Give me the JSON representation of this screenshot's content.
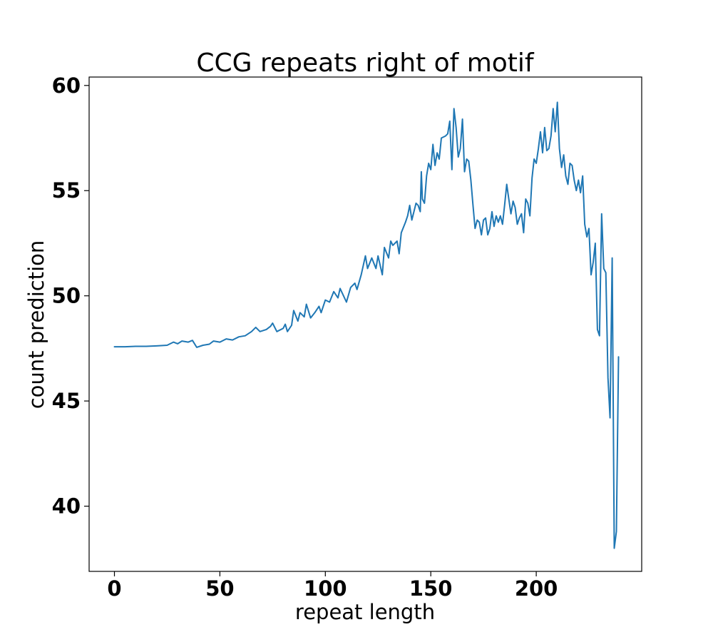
{
  "chart_data": {
    "type": "line",
    "title": "CCG repeats right of motif",
    "xlabel": "repeat length",
    "ylabel": "count prediction",
    "xlim": [
      -12,
      250
    ],
    "ylim": [
      36.9,
      60.4
    ],
    "xticks": [
      0,
      50,
      100,
      150,
      200
    ],
    "yticks": [
      40,
      45,
      50,
      55,
      60
    ],
    "xtick_labels": [
      "0",
      "50",
      "100",
      "150",
      "200"
    ],
    "ytick_labels": [
      "40",
      "45",
      "50",
      "55",
      "60"
    ],
    "grid": false,
    "legend": "none",
    "series": [
      {
        "color": "#1f77b4",
        "points": [
          [
            0,
            47.58
          ],
          [
            5,
            47.58
          ],
          [
            10,
            47.6
          ],
          [
            15,
            47.6
          ],
          [
            20,
            47.62
          ],
          [
            25,
            47.65
          ],
          [
            28,
            47.8
          ],
          [
            30,
            47.72
          ],
          [
            32,
            47.85
          ],
          [
            35,
            47.8
          ],
          [
            37,
            47.88
          ],
          [
            39,
            47.55
          ],
          [
            42,
            47.65
          ],
          [
            45,
            47.7
          ],
          [
            47,
            47.85
          ],
          [
            50,
            47.8
          ],
          [
            53,
            47.95
          ],
          [
            56,
            47.9
          ],
          [
            59,
            48.05
          ],
          [
            62,
            48.1
          ],
          [
            65,
            48.3
          ],
          [
            67,
            48.5
          ],
          [
            69,
            48.3
          ],
          [
            72,
            48.4
          ],
          [
            74,
            48.55
          ],
          [
            75,
            48.7
          ],
          [
            77,
            48.3
          ],
          [
            80,
            48.45
          ],
          [
            81,
            48.65
          ],
          [
            82,
            48.3
          ],
          [
            84,
            48.6
          ],
          [
            85,
            49.3
          ],
          [
            87,
            48.8
          ],
          [
            88,
            49.2
          ],
          [
            90,
            49.0
          ],
          [
            91,
            49.6
          ],
          [
            93,
            48.95
          ],
          [
            95,
            49.2
          ],
          [
            97,
            49.5
          ],
          [
            98,
            49.2
          ],
          [
            100,
            49.8
          ],
          [
            102,
            49.7
          ],
          [
            104,
            50.2
          ],
          [
            106,
            49.9
          ],
          [
            107,
            50.35
          ],
          [
            110,
            49.7
          ],
          [
            112,
            50.4
          ],
          [
            114,
            50.6
          ],
          [
            115,
            50.3
          ],
          [
            117,
            51.0
          ],
          [
            119,
            51.9
          ],
          [
            120,
            51.3
          ],
          [
            122,
            51.8
          ],
          [
            124,
            51.3
          ],
          [
            125,
            51.9
          ],
          [
            127,
            51.0
          ],
          [
            128,
            52.3
          ],
          [
            130,
            51.8
          ],
          [
            131,
            52.6
          ],
          [
            132,
            52.4
          ],
          [
            134,
            52.6
          ],
          [
            135,
            52.0
          ],
          [
            136,
            53.0
          ],
          [
            138,
            53.5
          ],
          [
            139,
            53.8
          ],
          [
            140,
            54.3
          ],
          [
            141,
            53.6
          ],
          [
            143,
            54.4
          ],
          [
            144,
            54.3
          ],
          [
            145,
            54.0
          ],
          [
            145.5,
            55.9
          ],
          [
            146,
            54.6
          ],
          [
            147,
            54.4
          ],
          [
            148,
            55.7
          ],
          [
            149,
            56.3
          ],
          [
            150,
            56.0
          ],
          [
            151,
            57.2
          ],
          [
            152,
            56.2
          ],
          [
            153,
            56.8
          ],
          [
            154,
            56.5
          ],
          [
            155,
            57.5
          ],
          [
            157,
            57.6
          ],
          [
            158,
            57.7
          ],
          [
            159,
            58.3
          ],
          [
            160,
            56.0
          ],
          [
            161,
            58.9
          ],
          [
            162,
            58.0
          ],
          [
            163,
            56.6
          ],
          [
            164,
            57.0
          ],
          [
            165,
            58.4
          ],
          [
            166,
            55.9
          ],
          [
            167,
            56.5
          ],
          [
            168,
            56.4
          ],
          [
            169,
            55.5
          ],
          [
            170,
            54.3
          ],
          [
            171,
            53.2
          ],
          [
            172,
            53.6
          ],
          [
            173,
            53.5
          ],
          [
            174,
            52.9
          ],
          [
            175,
            53.6
          ],
          [
            176,
            53.7
          ],
          [
            177,
            52.9
          ],
          [
            178,
            53.2
          ],
          [
            179,
            54.0
          ],
          [
            180,
            53.3
          ],
          [
            181,
            53.8
          ],
          [
            182,
            53.5
          ],
          [
            183,
            53.8
          ],
          [
            184,
            53.4
          ],
          [
            185,
            54.3
          ],
          [
            186,
            55.3
          ],
          [
            187,
            54.6
          ],
          [
            188,
            53.9
          ],
          [
            189,
            54.5
          ],
          [
            190,
            54.2
          ],
          [
            191,
            53.4
          ],
          [
            192,
            53.7
          ],
          [
            193,
            53.9
          ],
          [
            194,
            53.0
          ],
          [
            195,
            54.6
          ],
          [
            196,
            54.4
          ],
          [
            197,
            53.8
          ],
          [
            198,
            55.6
          ],
          [
            199,
            56.5
          ],
          [
            200,
            56.3
          ],
          [
            201,
            57.0
          ],
          [
            202,
            57.8
          ],
          [
            203,
            56.8
          ],
          [
            204,
            58.0
          ],
          [
            205,
            56.9
          ],
          [
            206,
            57.0
          ],
          [
            207,
            57.6
          ],
          [
            208,
            58.9
          ],
          [
            209,
            57.8
          ],
          [
            210,
            59.2
          ],
          [
            211,
            57.0
          ],
          [
            212,
            56.1
          ],
          [
            213,
            56.7
          ],
          [
            214,
            55.7
          ],
          [
            215,
            55.3
          ],
          [
            216,
            56.3
          ],
          [
            217,
            56.2
          ],
          [
            218,
            55.5
          ],
          [
            219,
            55.0
          ],
          [
            220,
            55.5
          ],
          [
            221,
            54.9
          ],
          [
            222,
            55.7
          ],
          [
            223,
            53.4
          ],
          [
            224,
            52.8
          ],
          [
            225,
            53.2
          ],
          [
            226,
            51.0
          ],
          [
            227,
            51.6
          ],
          [
            228,
            52.5
          ],
          [
            229,
            48.4
          ],
          [
            230,
            48.1
          ],
          [
            231,
            53.9
          ],
          [
            232,
            51.3
          ],
          [
            233,
            51.1
          ],
          [
            234,
            46.1
          ],
          [
            235,
            44.2
          ],
          [
            236,
            51.8
          ],
          [
            237,
            38.0
          ],
          [
            238,
            38.8
          ],
          [
            239,
            47.1
          ]
        ]
      }
    ]
  }
}
